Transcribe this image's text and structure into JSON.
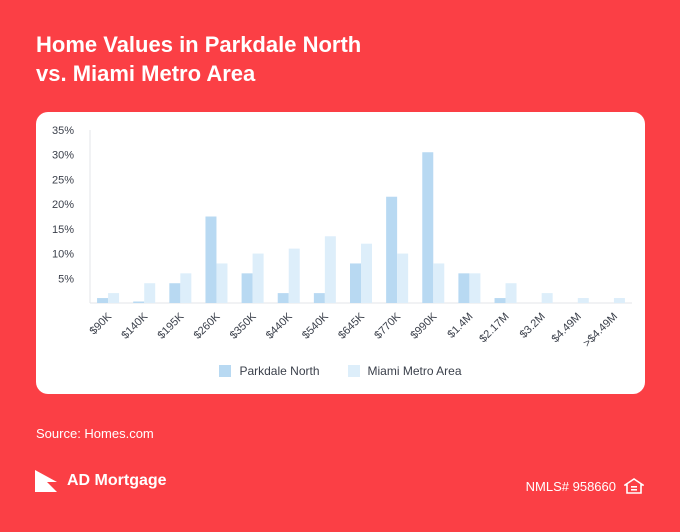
{
  "header": {
    "title_line1": "Home Values in Parkdale North",
    "title_line2": "vs. Miami Metro Area"
  },
  "chart_data": {
    "type": "bar",
    "categories": [
      "$90K",
      "$140K",
      "$195K",
      "$260K",
      "$350K",
      "$440K",
      "$540K",
      "$645K",
      "$770K",
      "$990K",
      "$1.4M",
      "$2.17M",
      "$3.2M",
      "$4.49M",
      ">$4.49M"
    ],
    "series": [
      {
        "name": "Parkdale North",
        "color": "#b8d9f2",
        "values": [
          1,
          0.3,
          4,
          17.5,
          6,
          2,
          2,
          8,
          21.5,
          30.5,
          6,
          1,
          0,
          0,
          0
        ]
      },
      {
        "name": "Miami Metro Area",
        "color": "#ddeefa",
        "values": [
          2,
          4,
          6,
          8,
          10,
          11,
          13.5,
          12,
          10,
          8,
          6,
          4,
          2,
          1,
          1
        ]
      }
    ],
    "yticks": [
      "35%",
      "30%",
      "25%",
      "20%",
      "15%",
      "10%",
      "5%"
    ],
    "ytick_values": [
      35,
      30,
      25,
      20,
      15,
      10,
      5
    ],
    "ylim": [
      0,
      35
    ],
    "legend_position": "bottom-center",
    "grid": false
  },
  "footer": {
    "source": "Source: Homes.com",
    "brand": "AD Mortgage",
    "nmls": "NMLS# 958660"
  },
  "icons": {
    "brand_logo": "ad-mortgage-logo-icon",
    "equal_housing": "equal-housing-icon"
  }
}
